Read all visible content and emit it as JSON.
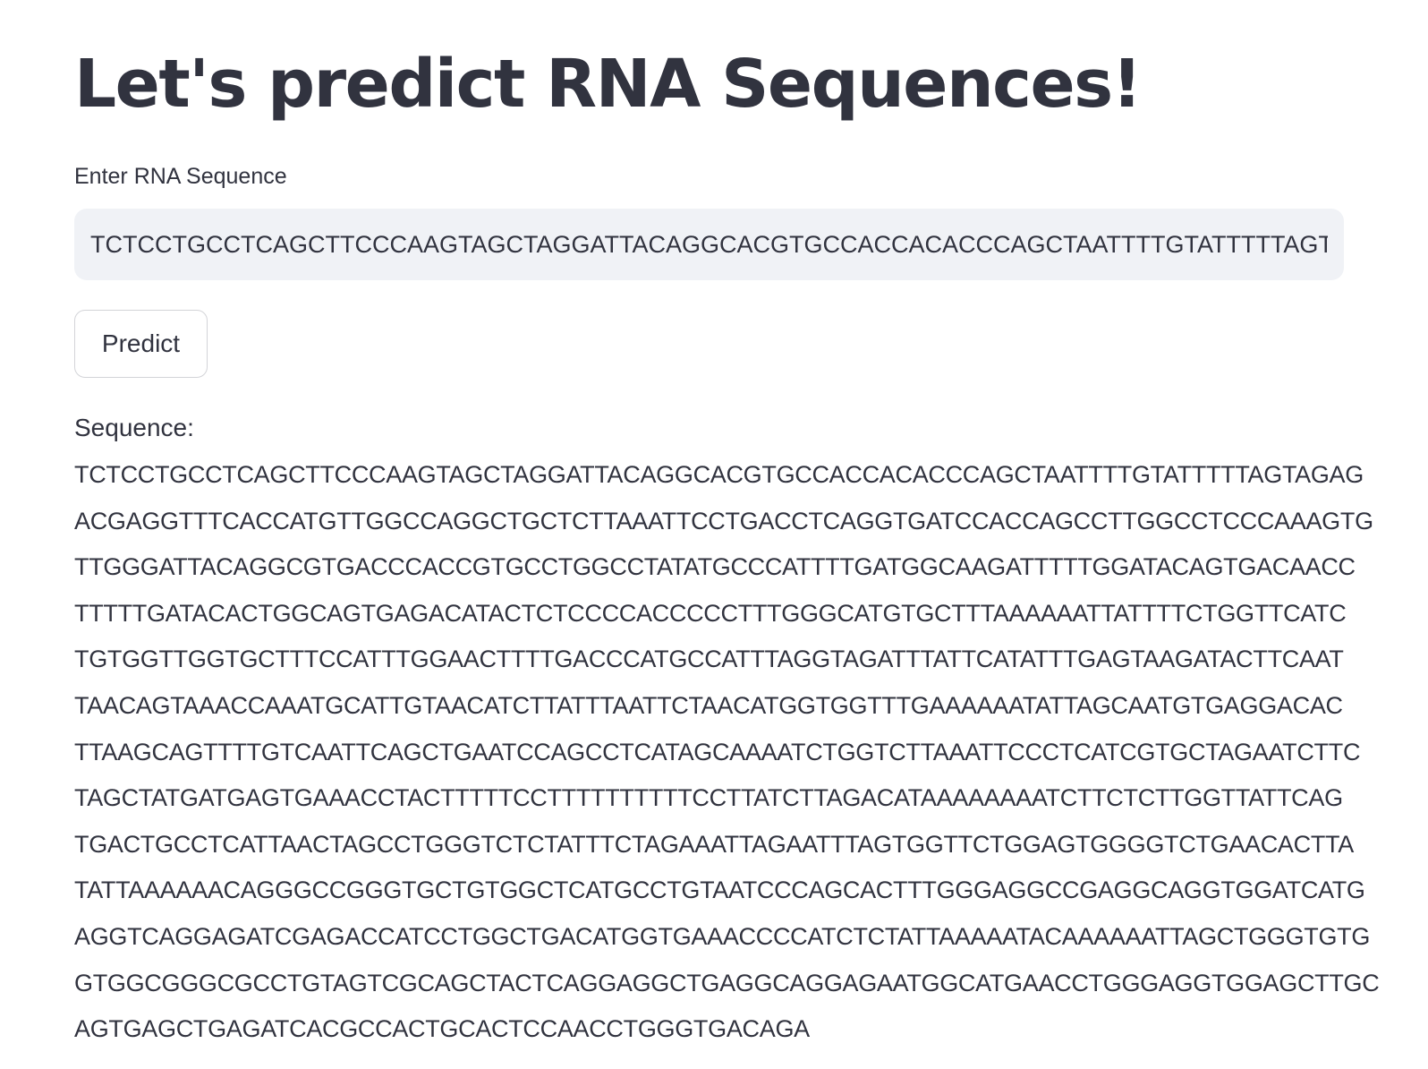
{
  "page": {
    "title": "Let's predict RNA Sequences!"
  },
  "input": {
    "label": "Enter RNA Sequence",
    "value": "TCTCCTGCCTCAGCTTCCCAAGTAGCTAGGATTACAGGCACGTGCCACCACACCCAGCTAATTTTGTATTTTTAGTAGA"
  },
  "predict_button": {
    "label": "Predict"
  },
  "output": {
    "label": "Sequence:",
    "lines": [
      "TCTCCTGCCTCAGCTTCCCAAGTAGCTAGGATTACAGGCACGTGCCACCACACCCAGCTAATTTTGTATTTTTAGTAGAG",
      "ACGAGGTTTCACCATGTTGGCCAGGCTGCTCTTAAATTCCTGACCTCAGGTGATCCACCAGCCTTGGCCTCCCAAAGTG",
      "TTGGGATTACAGGCGTGACCCACCGTGCCTGGCCTATATGCCCATTTTGATGGCAAGATTTTTGGATACAGTGACAACC",
      "TTTTTGATACACTGGCAGTGAGACATACTCTCCCCACCCCCTTTGGGCATGTGCTTTAAAAAATTATTTTCTGGTTCATC",
      "TGTGGTTGGTGCTTTCCATTTGGAACTTTTGACCCATGCCATTTAGGTAGATTTATTCATATTTGAGTAAGATACTTCAAT",
      "TAACAGTAAACCAAATGCATTGTAACATCTTATTTAATTCTAACATGGTGGTTTGAAAAAATATTAGCAATGTGAGGACAC",
      "TTAAGCAGTTTTGTCAATTCAGCTGAATCCAGCCTCATAGCAAAATCTGGTCTTAAATTCCCTCATCGTGCTAGAATCTTC",
      "TAGCTATGATGAGTGAAACCTACTTTTTCCTTTTTTTTTTCCTTATCTTAGACATAAAAAAAATCTTCTCTTGGTTATTCAG",
      "TGACTGCCTCATTAACTAGCCTGGGTCTCTATTTCTAGAAATTAGAATTTAGTGGTTCTGGAGTGGGGTCTGAACACTTA",
      "TATTAAAAAACAGGGCCGGGTGCTGTGGCTCATGCCTGTAATCCCAGCACTTTGGGAGGCCGAGGCAGGTGGATCATG",
      "AGGTCAGGAGATCGAGACCATCCTGGCTGACATGGTGAAACCCCATCTCTATTAAAAATACAAAAAATTAGCTGGGTGTG",
      "GTGGCGGGCGCCTGTAGTCGCAGCTACTCAGGAGGCTGAGGCAGGAGAATGGCATGAACCTGGGAGGTGGAGCTTGC",
      "AGTGAGCTGAGATCACGCCACTGCACTCCAACCTGGGTGACAGA"
    ]
  }
}
